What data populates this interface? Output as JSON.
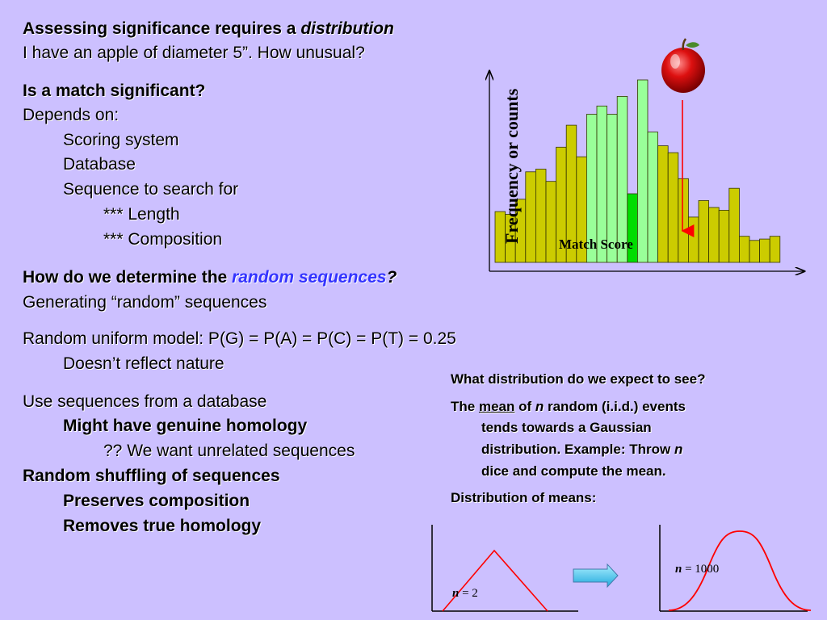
{
  "left": {
    "heading1_prefix": "Assessing significance requires a ",
    "heading1_em": "distribution",
    "line2": "I have an apple of diameter 5”. How  unusual?",
    "heading2": "Is a match significant?",
    "depends": "Depends on:",
    "dep_items": [
      "Scoring system",
      "Database",
      "Sequence to search for"
    ],
    "sub_items": [
      "*** Length",
      "*** Composition"
    ],
    "heading3_prefix": "How do we determine the ",
    "heading3_em": "random sequences",
    "heading3_suffix": "?",
    "gen": "Generating “random” sequences",
    "uniform": "Random uniform model: P(G) = P(A) = P(C) = P(T) = 0.25",
    "nature": "Doesn’t reflect nature",
    "usedb": "Use sequences from a database",
    "homology": "Might have genuine homology",
    "unrelated": "?? We want unrelated sequences",
    "shuffle": "Random shuffling of sequences",
    "preserves": "Preserves composition",
    "removes": "Removes true homology"
  },
  "histogram": {
    "ylabel": "Frequency or counts",
    "xlabel": "Match Score",
    "bar_color": "#cccc00",
    "highlight_color": "#99ff99",
    "match_color": "#00dd00",
    "arrow_color": "#ff0000"
  },
  "right": {
    "q": "What distribution do we expect to see?",
    "p_the": "The ",
    "p_mean": "mean",
    "p_of": " of ",
    "p_n1": "n",
    "p_rest1": " random (i.i.d.) events",
    "p_line2": "tends towards a Gaussian",
    "p_line3a": "distribution. Example:  Throw ",
    "p_n2": "n",
    "p_line4": "dice and compute the mean.",
    "means": "Distribution of means:"
  },
  "bottom": {
    "n2_label_n": "n",
    "n2_label_rest": " = 2",
    "n1000_label_n": "n",
    "n1000_label_rest": " = 1000",
    "curve_color": "#ff0000",
    "arrow_fill": "#33ccff"
  },
  "chart_data": {
    "type": "bar",
    "title": "",
    "xlabel": "Match Score",
    "ylabel": "Frequency or counts",
    "values": [
      37,
      35,
      46,
      66,
      68,
      59,
      84,
      100,
      77,
      108,
      114,
      108,
      121,
      50,
      133,
      95,
      85,
      80,
      61,
      33,
      45,
      40,
      38,
      54,
      19,
      16,
      17,
      19
    ],
    "highlight_indices": [
      9,
      10,
      11,
      12,
      14,
      15
    ],
    "match_index": 13
  }
}
